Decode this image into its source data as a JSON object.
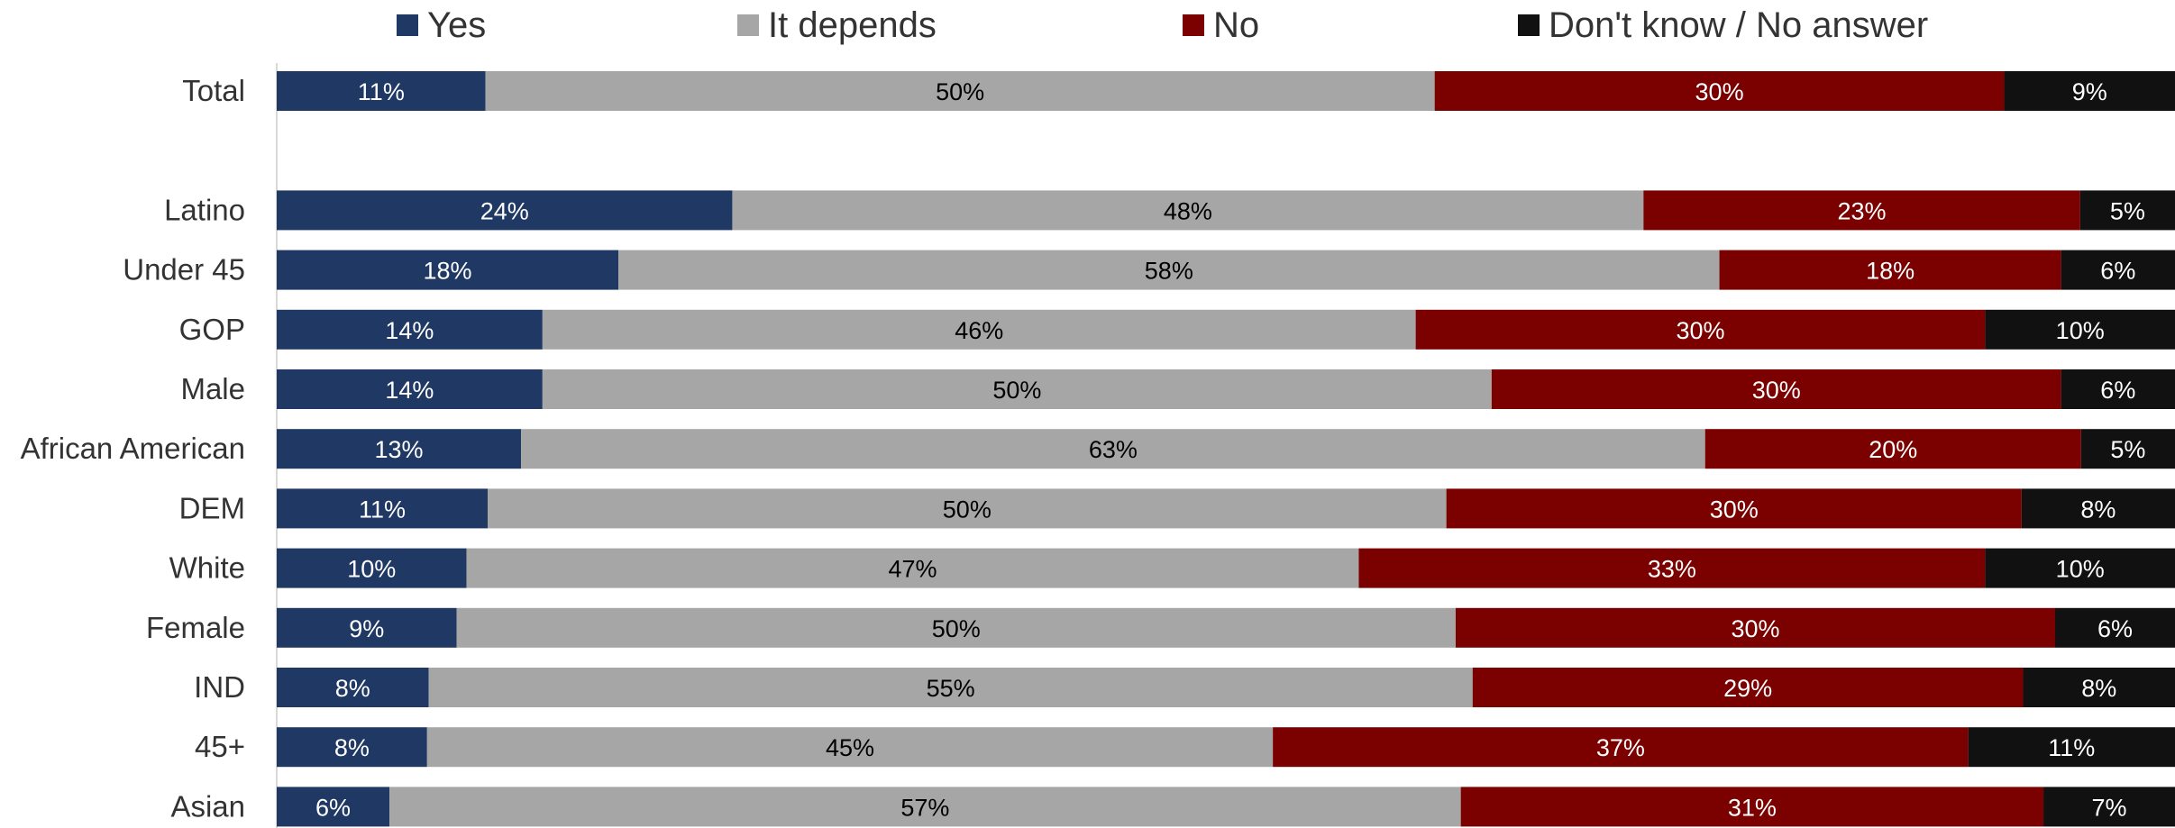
{
  "chart_data": {
    "type": "bar",
    "orientation": "horizontal",
    "stacked": true,
    "normalized": "percent",
    "legend_position": "top",
    "grid": false,
    "categories": [
      "Total",
      "",
      "Latino",
      "Under 45",
      "GOP",
      "Male",
      "African American",
      "DEM",
      "White",
      "Female",
      "IND",
      "45+",
      "Asian"
    ],
    "series": [
      {
        "name": "Yes",
        "color": "#1f3864",
        "label_color": "#ffffff",
        "values": [
          11,
          null,
          24,
          18,
          14,
          14,
          13,
          11,
          10,
          9,
          8,
          8,
          6
        ]
      },
      {
        "name": "It depends",
        "color": "#a6a6a6",
        "label_color": "#000000",
        "values": [
          50,
          null,
          48,
          58,
          46,
          50,
          63,
          50,
          47,
          50,
          55,
          45,
          57
        ]
      },
      {
        "name": "No",
        "color": "#7b0000",
        "label_color": "#ffffff",
        "values": [
          30,
          null,
          23,
          18,
          30,
          30,
          20,
          30,
          33,
          30,
          29,
          37,
          31
        ]
      },
      {
        "name": "Don't know / No answer",
        "color": "#111111",
        "label_color": "#ffffff",
        "values": [
          9,
          null,
          5,
          6,
          10,
          6,
          5,
          8,
          10,
          6,
          8,
          11,
          7
        ]
      }
    ],
    "value_suffix": "%"
  }
}
